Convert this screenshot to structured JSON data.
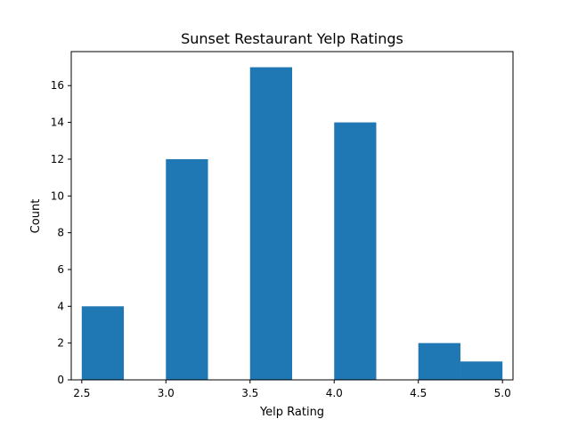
{
  "chart_data": {
    "type": "bar",
    "title": "Sunset Restaurant Yelp Ratings",
    "xlabel": "Yelp Rating",
    "ylabel": "Count",
    "xlim": [
      2.4375,
      5.0625
    ],
    "ylim": [
      0,
      17.85
    ],
    "xticks": [
      2.5,
      3.0,
      3.5,
      4.0,
      4.5,
      5.0
    ],
    "xtick_labels": [
      "2.5",
      "3.0",
      "3.5",
      "4.0",
      "4.5",
      "5.0"
    ],
    "yticks": [
      0,
      2,
      4,
      6,
      8,
      10,
      12,
      14,
      16
    ],
    "ytick_labels": [
      "0",
      "2",
      "4",
      "6",
      "8",
      "10",
      "12",
      "14",
      "16"
    ],
    "bin_edges": [
      2.5,
      2.75,
      3.0,
      3.25,
      3.5,
      3.75,
      4.0,
      4.25,
      4.5,
      4.75,
      5.0
    ],
    "values": [
      4,
      0,
      12,
      0,
      17,
      0,
      14,
      0,
      2,
      1
    ],
    "bar_color": "#1f77b4",
    "grid": false,
    "legend": "none"
  }
}
